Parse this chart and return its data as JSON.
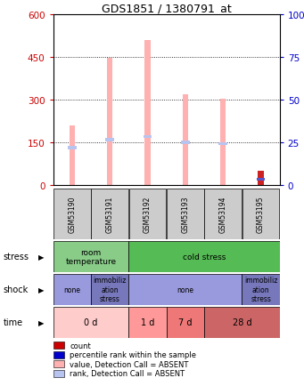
{
  "title": "GDS1851 / 1380791_at",
  "samples": [
    "GSM53190",
    "GSM53191",
    "GSM53192",
    "GSM53193",
    "GSM53194",
    "GSM53195"
  ],
  "bar_values": [
    210,
    447,
    510,
    320,
    305,
    50
  ],
  "rank_values": [
    130,
    160,
    170,
    150,
    145,
    20
  ],
  "bar_type_absent": [
    true,
    true,
    true,
    true,
    true,
    true
  ],
  "rank_type_absent": [
    true,
    true,
    true,
    true,
    true,
    false
  ],
  "last_bar_red": 50,
  "last_bar_blue": 20,
  "bar_color_absent": "#ffb0b0",
  "rank_color_absent": "#b8c4f0",
  "rank_color_present": "#5555cc",
  "bar_color_present_red": "#cc2222",
  "ylim_left": [
    0,
    600
  ],
  "ylim_right": [
    0,
    100
  ],
  "yticks_left": [
    0,
    150,
    300,
    450,
    600
  ],
  "yticks_right": [
    0,
    25,
    50,
    75,
    100
  ],
  "stress_labels": [
    {
      "text": "room\ntemperature",
      "start": 0,
      "end": 2,
      "color": "#88cc88"
    },
    {
      "text": "cold stress",
      "start": 2,
      "end": 6,
      "color": "#55bb55"
    }
  ],
  "shock_labels": [
    {
      "text": "none",
      "start": 0,
      "end": 1,
      "color": "#9999dd"
    },
    {
      "text": "immobiliz\nation\nstress",
      "start": 1,
      "end": 2,
      "color": "#7777bb"
    },
    {
      "text": "none",
      "start": 2,
      "end": 5,
      "color": "#9999dd"
    },
    {
      "text": "immobiliz\nation\nstress",
      "start": 5,
      "end": 6,
      "color": "#7777bb"
    }
  ],
  "time_labels": [
    {
      "text": "0 d",
      "start": 0,
      "end": 2,
      "color": "#ffcccc"
    },
    {
      "text": "1 d",
      "start": 2,
      "end": 3,
      "color": "#ff9999"
    },
    {
      "text": "7 d",
      "start": 3,
      "end": 4,
      "color": "#ee7777"
    },
    {
      "text": "28 d",
      "start": 4,
      "end": 6,
      "color": "#cc6666"
    }
  ],
  "legend_items": [
    {
      "color": "#cc0000",
      "label": "count"
    },
    {
      "color": "#0000cc",
      "label": "percentile rank within the sample"
    },
    {
      "color": "#ffb0b0",
      "label": "value, Detection Call = ABSENT"
    },
    {
      "color": "#b8c4f0",
      "label": "rank, Detection Call = ABSENT"
    }
  ],
  "bg_color": "#ffffff",
  "sample_box_color": "#cccccc",
  "left_ytick_color": "#cc0000",
  "right_ytick_color": "#0000cc",
  "fig_width": 3.41,
  "fig_height": 4.35,
  "dpi": 100
}
